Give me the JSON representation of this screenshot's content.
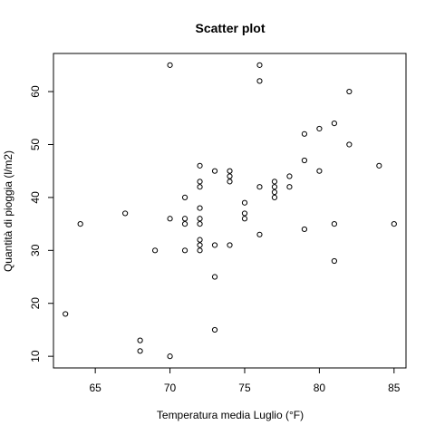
{
  "chart_data": {
    "type": "scatter",
    "title": "Scatter plot",
    "xlabel": "Temperatura media Luglio (°F)",
    "ylabel": "Quantità di pioggia (l/m2)",
    "xlim": [
      62.2,
      85.8
    ],
    "ylim": [
      7.8,
      67.2
    ],
    "xticks": [
      65,
      70,
      75,
      80,
      85
    ],
    "yticks": [
      10,
      20,
      30,
      40,
      50,
      60
    ],
    "grid": false,
    "legend": "none",
    "points": [
      {
        "x": 70,
        "y": 65
      },
      {
        "x": 76,
        "y": 65
      },
      {
        "x": 76,
        "y": 62
      },
      {
        "x": 82,
        "y": 60
      },
      {
        "x": 81,
        "y": 54
      },
      {
        "x": 80,
        "y": 53
      },
      {
        "x": 79,
        "y": 52
      },
      {
        "x": 82,
        "y": 50
      },
      {
        "x": 79,
        "y": 47
      },
      {
        "x": 72,
        "y": 46
      },
      {
        "x": 84,
        "y": 46
      },
      {
        "x": 73,
        "y": 45
      },
      {
        "x": 74,
        "y": 45
      },
      {
        "x": 80,
        "y": 45
      },
      {
        "x": 74,
        "y": 44
      },
      {
        "x": 78,
        "y": 44
      },
      {
        "x": 72,
        "y": 43
      },
      {
        "x": 74,
        "y": 43
      },
      {
        "x": 77,
        "y": 43
      },
      {
        "x": 72,
        "y": 42
      },
      {
        "x": 76,
        "y": 42
      },
      {
        "x": 77,
        "y": 42
      },
      {
        "x": 78,
        "y": 42
      },
      {
        "x": 77,
        "y": 41
      },
      {
        "x": 71,
        "y": 40
      },
      {
        "x": 77,
        "y": 40
      },
      {
        "x": 75,
        "y": 39
      },
      {
        "x": 72,
        "y": 38
      },
      {
        "x": 67,
        "y": 37
      },
      {
        "x": 75,
        "y": 37
      },
      {
        "x": 70,
        "y": 36
      },
      {
        "x": 71,
        "y": 36
      },
      {
        "x": 72,
        "y": 36
      },
      {
        "x": 75,
        "y": 36
      },
      {
        "x": 64,
        "y": 35
      },
      {
        "x": 71,
        "y": 35
      },
      {
        "x": 72,
        "y": 35
      },
      {
        "x": 81,
        "y": 35
      },
      {
        "x": 85,
        "y": 35
      },
      {
        "x": 79,
        "y": 34
      },
      {
        "x": 76,
        "y": 33
      },
      {
        "x": 72,
        "y": 32
      },
      {
        "x": 72,
        "y": 31
      },
      {
        "x": 73,
        "y": 31
      },
      {
        "x": 74,
        "y": 31
      },
      {
        "x": 69,
        "y": 30
      },
      {
        "x": 71,
        "y": 30
      },
      {
        "x": 72,
        "y": 30
      },
      {
        "x": 81,
        "y": 28
      },
      {
        "x": 73,
        "y": 25
      },
      {
        "x": 63,
        "y": 18
      },
      {
        "x": 73,
        "y": 15
      },
      {
        "x": 68,
        "y": 13
      },
      {
        "x": 68,
        "y": 11
      },
      {
        "x": 70,
        "y": 10
      }
    ]
  }
}
